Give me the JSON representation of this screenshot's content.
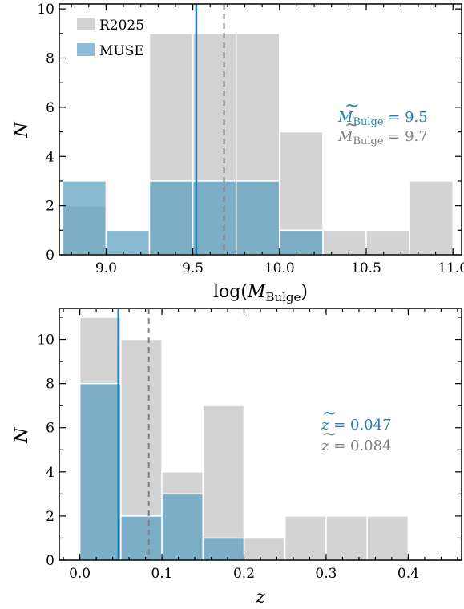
{
  "chart_data": [
    {
      "type": "bar",
      "panel": "top",
      "xlabel": "log(M_Bulge)",
      "xlabel_base": "log(",
      "xlabel_sym": "M",
      "xlabel_sub": "Bulge",
      "xlabel_close": ")",
      "ylabel": "N",
      "xlim": [
        8.73,
        11.05
      ],
      "ylim": [
        0,
        10.2
      ],
      "xticks": [
        "9.0",
        "9.5",
        "10.0",
        "10.5",
        "11.0"
      ],
      "xtick_values": [
        9.0,
        9.5,
        10.0,
        10.5,
        11.0
      ],
      "yticks": [
        "0",
        "2",
        "4",
        "6",
        "8",
        "10"
      ],
      "ytick_values": [
        0,
        2,
        4,
        6,
        8,
        10
      ],
      "bin_edges": [
        8.75,
        9.0,
        9.25,
        9.5,
        9.75,
        10.0,
        10.25,
        10.5,
        10.75,
        11.0
      ],
      "series": [
        {
          "name": "R2025",
          "color": "#d3d3d3",
          "values": [
            2,
            0,
            9,
            9,
            9,
            5,
            1,
            1,
            3
          ]
        },
        {
          "name": "MUSE",
          "color": "#5b9fc4",
          "values": [
            3,
            1,
            3,
            3,
            3,
            1,
            0,
            0,
            0
          ]
        }
      ],
      "legend_position": "top-left",
      "median_lines": [
        {
          "series": "MUSE",
          "value": 9.52,
          "style": "solid",
          "color": "#2180b5"
        },
        {
          "series": "R2025",
          "value": 9.68,
          "style": "dashed",
          "color": "#808080"
        }
      ],
      "annotations": [
        {
          "sym": "M",
          "sub": "Bulge",
          "eq": " = 9.5",
          "color": "#2180b5"
        },
        {
          "sym": "M",
          "sub": "Bulge",
          "eq": " = 9.7",
          "color": "#808080"
        }
      ]
    },
    {
      "type": "bar",
      "panel": "bottom",
      "xlabel": "z",
      "ylabel": "N",
      "xlim": [
        -0.025,
        0.465
      ],
      "ylim": [
        0,
        11.4
      ],
      "xticks": [
        "0.0",
        "0.1",
        "0.2",
        "0.3",
        "0.4"
      ],
      "xtick_values": [
        0.0,
        0.1,
        0.2,
        0.3,
        0.4
      ],
      "yticks": [
        "0",
        "2",
        "4",
        "6",
        "8",
        "10"
      ],
      "ytick_values": [
        0,
        2,
        4,
        6,
        8,
        10
      ],
      "bin_edges": [
        0.0,
        0.05,
        0.1,
        0.15,
        0.2,
        0.25,
        0.3,
        0.35,
        0.4
      ],
      "series": [
        {
          "name": "R2025",
          "color": "#d3d3d3",
          "values": [
            11,
            10,
            4,
            7,
            1,
            2,
            2,
            2
          ]
        },
        {
          "name": "MUSE",
          "color": "#5b9fc4",
          "values": [
            8,
            2,
            3,
            1,
            0,
            0,
            0,
            0
          ]
        }
      ],
      "median_lines": [
        {
          "series": "MUSE",
          "value": 0.047,
          "style": "solid",
          "color": "#2180b5"
        },
        {
          "series": "R2025",
          "value": 0.084,
          "style": "dashed",
          "color": "#808080"
        }
      ],
      "annotations": [
        {
          "sym": "z",
          "sub": "",
          "eq": " = 0.047",
          "color": "#2180b5"
        },
        {
          "sym": "z",
          "sub": "",
          "eq": " = 0.084",
          "color": "#808080"
        }
      ]
    }
  ],
  "tilde": "~"
}
